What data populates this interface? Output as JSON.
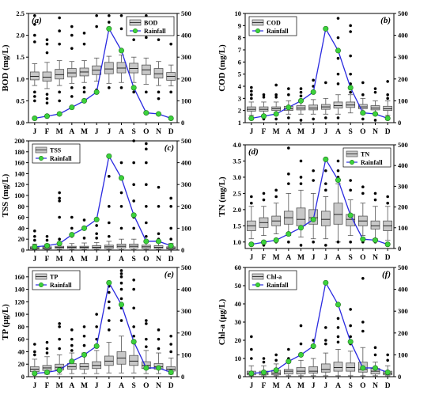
{
  "colors": {
    "box_fill": "#c8c8c8",
    "box_edge": "#555555",
    "median": "#e06060",
    "rainfall_line": "#2a2ae0",
    "rainfall_marker": "#3cd23c",
    "outlier": "#000000"
  },
  "chart_data": [
    {
      "type": "box+line",
      "panel_label": "(a)",
      "ylabel": "BOD (mg/L)",
      "y2label": "",
      "ylim": [
        0,
        2.5
      ],
      "yticks": [
        "0.0",
        "0.5",
        "1.0",
        "1.5",
        "2.0",
        "2.5"
      ],
      "y2lim": [
        0,
        500
      ],
      "y2ticks": [
        "0",
        "100",
        "200",
        "300",
        "400",
        "500"
      ],
      "legend_box": "BOD",
      "legend_line": "Rainfall",
      "legend_pos": "top-right",
      "categories": [
        "J",
        "F",
        "M",
        "A",
        "M",
        "J",
        "J",
        "A",
        "S",
        "O",
        "N",
        "D"
      ],
      "box": {
        "median": [
          1.06,
          1.04,
          1.1,
          1.14,
          1.16,
          1.2,
          1.23,
          1.25,
          1.24,
          1.21,
          1.12,
          1.06
        ],
        "q1": [
          0.98,
          0.95,
          1.0,
          1.05,
          1.07,
          1.1,
          1.12,
          1.14,
          1.14,
          1.1,
          1.02,
          0.97
        ],
        "q3": [
          1.16,
          1.16,
          1.22,
          1.24,
          1.25,
          1.3,
          1.38,
          1.38,
          1.36,
          1.32,
          1.24,
          1.15
        ],
        "whisker_low": [
          0.85,
          0.78,
          0.85,
          0.9,
          0.92,
          0.95,
          0.9,
          0.92,
          0.92,
          0.88,
          0.85,
          0.84
        ],
        "whisker_high": [
          1.35,
          1.38,
          1.42,
          1.4,
          1.42,
          1.48,
          1.52,
          1.55,
          1.5,
          1.48,
          1.4,
          1.32
        ],
        "outliers": [
          [
            2.45,
            2.25,
            2.0,
            1.85,
            0.7,
            0.6,
            0.5
          ],
          [
            1.9,
            1.8,
            1.6,
            0.65,
            0.55,
            0.45
          ],
          [
            2.4,
            2.1,
            1.8,
            0.7,
            0.5
          ],
          [
            2.2,
            2.0,
            1.7,
            0.8,
            0.6
          ],
          [
            2.05,
            1.8,
            0.8,
            0.7
          ],
          [
            2.45,
            2.2,
            0.75
          ],
          [
            2.45,
            2.3,
            0.8
          ],
          [
            2.45,
            2.15,
            0.8
          ],
          [
            2.1,
            1.9,
            0.7
          ],
          [
            2.45,
            2.25,
            1.95,
            0.7
          ],
          [
            2.25,
            2.1,
            1.9,
            0.7,
            0.55
          ],
          [
            2.3,
            2.15,
            1.8,
            0.7
          ]
        ]
      },
      "rainfall": [
        20,
        30,
        40,
        70,
        100,
        140,
        430,
        330,
        160,
        45,
        40,
        20
      ]
    },
    {
      "type": "box+line",
      "panel_label": "(b)",
      "ylabel": "COD (mg/L)",
      "y2label": "",
      "ylim": [
        1,
        10
      ],
      "yticks": [
        "1",
        "2",
        "3",
        "4",
        "5",
        "6",
        "7",
        "8",
        "9",
        "10"
      ],
      "y2lim": [
        0,
        500
      ],
      "y2ticks": [
        "0",
        "100",
        "200",
        "300",
        "400",
        "500"
      ],
      "legend_box": "COD",
      "legend_line": "Rainfall",
      "legend_pos": "top-left",
      "categories": [
        "J",
        "F",
        "M",
        "A",
        "M",
        "J",
        "J",
        "A",
        "S",
        "O",
        "N",
        "D"
      ],
      "box": {
        "median": [
          2.1,
          2.1,
          2.15,
          2.15,
          2.2,
          2.2,
          2.3,
          2.4,
          2.45,
          2.3,
          2.2,
          2.15
        ],
        "q1": [
          1.95,
          1.95,
          2.0,
          2.0,
          2.05,
          2.05,
          2.1,
          2.2,
          2.25,
          2.15,
          2.05,
          2.0
        ],
        "q3": [
          2.3,
          2.3,
          2.3,
          2.35,
          2.4,
          2.45,
          2.5,
          2.7,
          2.7,
          2.5,
          2.4,
          2.35
        ],
        "whisker_low": [
          1.6,
          1.6,
          1.7,
          1.7,
          1.7,
          1.7,
          1.7,
          1.7,
          1.8,
          1.7,
          1.7,
          1.6
        ],
        "whisker_high": [
          2.7,
          2.7,
          2.7,
          2.8,
          2.8,
          2.9,
          3.0,
          3.3,
          3.3,
          3.0,
          2.8,
          2.8
        ],
        "outliers": [
          [
            3.9,
            3.6,
            3.3,
            3.0,
            1.3
          ],
          [
            3.3,
            3.1,
            1.3
          ],
          [
            4.1,
            3.3,
            3.1,
            1.3
          ],
          [
            3.8,
            3.3,
            1.4
          ],
          [
            3.8,
            3.5,
            3.2,
            1.2
          ],
          [
            4.5,
            4.0,
            1.3
          ],
          [
            4.3,
            1.4
          ],
          [
            9.6,
            8.0,
            6.3,
            5.0,
            4.2,
            1.4
          ],
          [
            9.0,
            8.5,
            6.5,
            5.0,
            4.2,
            3.5
          ],
          [
            4.3,
            3.3,
            1.3
          ],
          [
            3.8,
            3.5,
            1.2
          ],
          [
            4.4,
            3.3,
            3.0,
            1.3
          ]
        ]
      },
      "rainfall": [
        20,
        30,
        40,
        70,
        100,
        140,
        430,
        330,
        160,
        45,
        40,
        20
      ]
    },
    {
      "type": "box+line",
      "panel_label": "(c)",
      "ylabel": "TSS (mg/L)",
      "y2label": "",
      "ylim": [
        0,
        200
      ],
      "yticks": [
        "0",
        "20",
        "40",
        "60",
        "80",
        "100",
        "120",
        "140",
        "160",
        "180",
        "200"
      ],
      "y2lim": [
        0,
        500
      ],
      "y2ticks": [
        "0",
        "100",
        "200",
        "300",
        "400",
        "500"
      ],
      "legend_box": "TSS",
      "legend_line": "Rainfall",
      "legend_pos": "top-left",
      "categories": [
        "J",
        "F",
        "M",
        "A",
        "M",
        "J",
        "J",
        "A",
        "S",
        "O",
        "N",
        "D"
      ],
      "box": {
        "median": [
          4,
          4,
          5,
          5,
          5,
          5,
          6,
          7,
          7,
          6,
          5,
          4
        ],
        "q1": [
          2,
          2,
          3,
          3,
          3,
          3,
          3,
          4,
          4,
          3,
          3,
          2
        ],
        "q3": [
          6,
          6,
          7,
          7,
          7,
          8,
          9,
          11,
          11,
          9,
          8,
          6
        ],
        "whisker_low": [
          1,
          1,
          1,
          1,
          1,
          1,
          1,
          1,
          1,
          1,
          1,
          1
        ],
        "whisker_high": [
          11,
          11,
          12,
          12,
          13,
          14,
          16,
          20,
          20,
          16,
          14,
          12
        ],
        "outliers": [
          [
            35,
            25,
            18
          ],
          [
            25,
            18
          ],
          [
            105,
            95,
            90,
            60,
            20
          ],
          [
            60,
            40,
            25
          ],
          [
            55,
            40,
            22
          ],
          [
            45,
            30,
            22
          ],
          [
            135,
            80,
            50,
            25
          ],
          [
            160,
            130,
            105,
            80,
            40
          ],
          [
            200,
            160,
            120,
            90,
            60,
            40
          ],
          [
            195,
            185,
            160,
            120,
            80,
            50,
            25
          ],
          [
            115,
            80,
            30,
            20
          ],
          [
            95,
            80,
            40,
            20
          ]
        ]
      },
      "rainfall": [
        15,
        20,
        30,
        70,
        100,
        140,
        430,
        330,
        160,
        40,
        40,
        20
      ]
    },
    {
      "type": "box+line",
      "panel_label": "(d)",
      "ylabel": "TN (mg/L)",
      "y2label": "",
      "ylim": [
        0.8,
        4.0
      ],
      "yticks": [
        "1.0",
        "1.5",
        "2.0",
        "2.5",
        "3.0",
        "3.5",
        "4.0"
      ],
      "y2lim": [
        0,
        500
      ],
      "y2ticks": [
        "0",
        "100",
        "200",
        "300",
        "400",
        "500"
      ],
      "legend_box": "TN",
      "legend_line": "Rainfall",
      "legend_pos": "top-right",
      "categories": [
        "J",
        "F",
        "M",
        "A",
        "M",
        "J",
        "J",
        "A",
        "S",
        "O",
        "N",
        "D"
      ],
      "box": {
        "median": [
          1.5,
          1.6,
          1.65,
          1.75,
          1.7,
          1.75,
          1.7,
          1.85,
          1.7,
          1.65,
          1.5,
          1.5
        ],
        "q1": [
          1.35,
          1.45,
          1.5,
          1.55,
          1.5,
          1.55,
          1.5,
          1.55,
          1.5,
          1.5,
          1.4,
          1.35
        ],
        "q3": [
          1.65,
          1.75,
          1.8,
          1.95,
          2.05,
          2.0,
          1.95,
          2.2,
          1.85,
          1.8,
          1.65,
          1.65
        ],
        "whisker_low": [
          1.1,
          1.2,
          1.25,
          1.2,
          1.15,
          1.1,
          1.1,
          1.0,
          1.2,
          1.2,
          1.1,
          1.05
        ],
        "whisker_high": [
          2.1,
          2.1,
          2.2,
          2.5,
          2.6,
          2.5,
          2.4,
          2.8,
          2.3,
          2.2,
          2.1,
          2.1
        ],
        "outliers": [
          [
            2.4,
            2.2,
            0.9
          ],
          [
            2.5,
            2.3,
            0.9
          ],
          [
            2.6,
            2.4,
            1.0
          ],
          [
            3.9,
            3.1,
            2.8,
            1.0
          ],
          [
            3.5,
            3.0,
            2.8,
            0.9
          ],
          [
            3.2,
            2.9,
            1.0
          ],
          [
            3.2,
            2.8,
            2.6,
            0.9
          ],
          [
            3.5,
            3.2,
            3.0,
            1.0
          ],
          [
            2.9,
            2.6,
            1.0
          ],
          [
            2.7,
            2.5,
            1.0
          ],
          [
            2.5,
            2.3,
            1.0
          ],
          [
            2.4,
            2.2,
            0.9
          ]
        ]
      },
      "rainfall": [
        20,
        30,
        40,
        70,
        100,
        140,
        430,
        330,
        160,
        45,
        40,
        20
      ]
    },
    {
      "type": "box+line",
      "panel_label": "(e)",
      "ylabel": "TP (μg/L)",
      "y2label": "",
      "ylim": [
        0,
        175
      ],
      "yticks": [
        "0",
        "20",
        "40",
        "60",
        "80",
        "100",
        "120",
        "140",
        "160"
      ],
      "y2lim": [
        0,
        500
      ],
      "y2ticks": [
        "0",
        "100",
        "200",
        "300",
        "400",
        "500"
      ],
      "legend_box": "TP",
      "legend_line": "Rainfall",
      "legend_pos": "top-left",
      "categories": [
        "J",
        "F",
        "M",
        "A",
        "M",
        "J",
        "J",
        "A",
        "S",
        "O",
        "N",
        "D"
      ],
      "box": {
        "median": [
          12,
          14,
          15,
          16,
          16,
          18,
          25,
          30,
          25,
          18,
          16,
          12
        ],
        "q1": [
          8,
          10,
          11,
          12,
          12,
          13,
          18,
          20,
          18,
          13,
          12,
          9
        ],
        "q3": [
          16,
          18,
          20,
          21,
          21,
          24,
          33,
          40,
          34,
          24,
          21,
          16
        ],
        "whisker_low": [
          3,
          4,
          4,
          5,
          5,
          5,
          6,
          6,
          6,
          5,
          5,
          4
        ],
        "whisker_high": [
          28,
          32,
          35,
          38,
          38,
          42,
          55,
          65,
          55,
          42,
          38,
          30
        ],
        "outliers": [
          [
            52,
            40,
            35
          ],
          [
            55,
            45,
            38
          ],
          [
            85,
            80,
            60,
            45
          ],
          [
            75,
            60,
            50,
            42
          ],
          [
            80,
            65,
            50
          ],
          [
            100,
            80,
            60
          ],
          [
            145,
            135,
            120,
            110,
            90,
            75
          ],
          [
            170,
            165,
            160,
            150,
            140,
            125,
            110,
            90
          ],
          [
            155,
            140,
            110,
            80,
            65
          ],
          [
            90,
            85,
            60,
            48
          ],
          [
            75,
            60,
            45
          ],
          [
            65,
            52,
            40
          ]
        ]
      },
      "rainfall": [
        15,
        20,
        30,
        70,
        100,
        140,
        430,
        330,
        160,
        40,
        40,
        20
      ]
    },
    {
      "type": "box+line",
      "panel_label": "(f)",
      "ylabel": "Chl-a (μg/L)",
      "y2label": "",
      "ylim": [
        0,
        60
      ],
      "yticks": [
        "0",
        "10",
        "20",
        "30",
        "40",
        "50",
        "60"
      ],
      "y2lim": [
        0,
        500
      ],
      "y2ticks": [
        "0",
        "100",
        "200",
        "300",
        "400",
        "500"
      ],
      "legend_box": "Chl-a",
      "legend_line": "Rainfall",
      "legend_pos": "top-left",
      "categories": [
        "J",
        "F",
        "M",
        "A",
        "M",
        "J",
        "J",
        "A",
        "S",
        "O",
        "N",
        "D"
      ],
      "box": {
        "median": [
          2,
          2,
          2,
          3,
          3,
          3,
          4,
          5,
          5,
          4,
          3,
          2
        ],
        "q1": [
          1,
          1,
          1,
          1.5,
          1.5,
          2,
          2.5,
          3,
          3,
          2.5,
          1.5,
          1
        ],
        "q3": [
          3,
          3,
          3.5,
          4,
          5,
          5.5,
          7,
          8,
          7.5,
          8,
          4.5,
          3
        ],
        "whisker_low": [
          0.5,
          0.5,
          0.5,
          0.5,
          0.5,
          0.5,
          0.5,
          0.5,
          0.5,
          0.5,
          0.5,
          0.5
        ],
        "whisker_high": [
          6,
          6,
          7,
          8,
          9,
          10,
          13,
          15,
          14,
          16,
          8,
          6
        ],
        "outliers": [
          [
            22,
            15,
            10
          ],
          [
            10,
            8
          ],
          [
            12,
            9
          ],
          [
            15,
            10
          ],
          [
            28,
            18,
            12
          ],
          [
            20,
            16
          ],
          [
            27,
            20,
            18
          ],
          [
            32,
            27,
            22,
            19
          ],
          [
            37,
            28,
            22,
            18
          ],
          [
            54,
            30,
            25
          ],
          [
            16,
            12
          ],
          [
            12,
            9
          ]
        ]
      },
      "rainfall": [
        15,
        20,
        30,
        70,
        100,
        140,
        430,
        330,
        160,
        40,
        40,
        20
      ]
    }
  ]
}
